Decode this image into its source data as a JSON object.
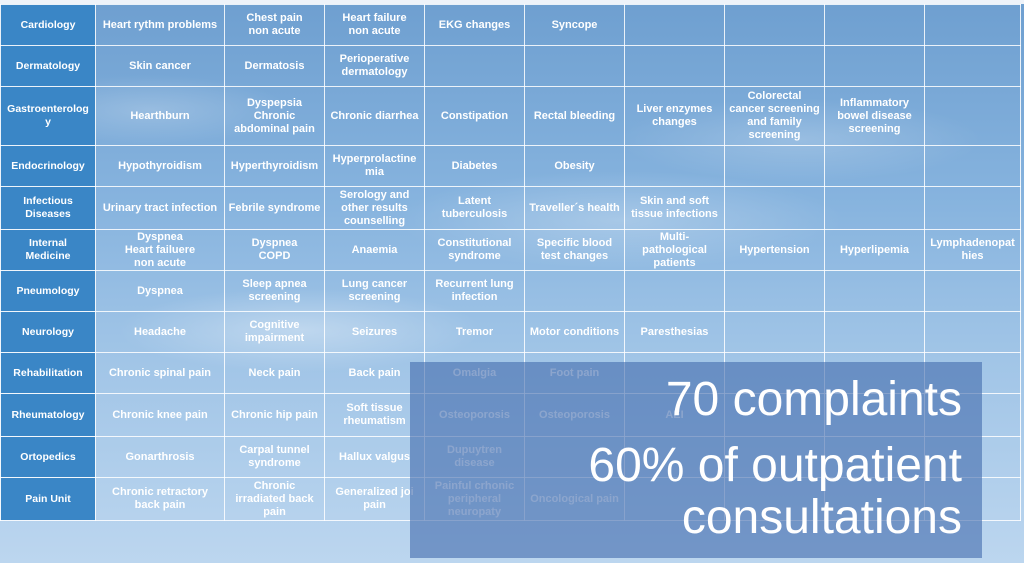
{
  "table": {
    "rows": [
      {
        "category": "Cardiology",
        "cells": [
          "Heart rythm problems",
          "Chest pain\nnon acute",
          "Heart failure\nnon acute",
          "EKG changes",
          "Syncope",
          "",
          "",
          "",
          ""
        ]
      },
      {
        "category": "Dermatology",
        "cells": [
          "Skin cancer",
          "Dermatosis",
          "Perioperative\ndermatology",
          "",
          "",
          "",
          "",
          "",
          ""
        ]
      },
      {
        "category": "Gastroenterolog\ny",
        "cells": [
          "Hearthburn",
          "Dyspepsia\nChronic\nabdominal pain",
          "Chronic diarrhea",
          "Constipation",
          "Rectal bleeding",
          "Liver enzymes\nchanges",
          "Colorectal\ncancer screening\nand family\nscreening",
          "Inflammatory\nbowel disease\nscreening",
          ""
        ]
      },
      {
        "category": "Endocrinology",
        "cells": [
          "Hypothyroidism",
          "Hyperthyroidism",
          "Hyperprolactine\nmia",
          "Diabetes",
          "Obesity",
          "",
          "",
          "",
          ""
        ]
      },
      {
        "category": "Infectious\nDiseases",
        "cells": [
          "Urinary tract infection",
          "Febrile syndrome",
          "Serology and\nother results\ncounselling",
          "Latent\ntuberculosis",
          "Traveller´s health",
          "Skin and soft\ntissue infections",
          "",
          "",
          ""
        ]
      },
      {
        "category": "Internal\nMedicine",
        "cells": [
          "Dyspnea\nHeart failuere\nnon acute",
          "Dyspnea\nCOPD",
          "Anaemia",
          "Constitutional\nsyndrome",
          "Specific blood\ntest changes",
          "Multi-\npathological\npatients",
          "Hypertension",
          "Hyperlipemia",
          "Lymphadenopat\nhies"
        ]
      },
      {
        "category": "Pneumology",
        "cells": [
          "Dyspnea",
          "Sleep apnea\nscreening",
          "Lung cancer\nscreening",
          "Recurrent lung\ninfection",
          "",
          "",
          "",
          "",
          ""
        ]
      },
      {
        "category": "Neurology",
        "cells": [
          "Headache",
          "Cognitive\nimpairment",
          "Seizures",
          "Tremor",
          "Motor conditions",
          "Paresthesias",
          "",
          "",
          ""
        ]
      },
      {
        "category": "Rehabilitation",
        "cells": [
          "Chronic spinal pain",
          "Neck pain",
          "Back pain",
          "Omalgia",
          "Foot pain",
          "",
          "",
          "",
          ""
        ]
      },
      {
        "category": "Rheumatology",
        "cells": [
          "Chronic knee pain",
          "Chronic hip pain",
          "Soft tissue\nrheumatism",
          "Osteoporosis",
          "Osteoporosis",
          "AEI",
          "",
          "",
          ""
        ]
      },
      {
        "category": "Ortopedics",
        "cells": [
          "Gonarthrosis",
          "Carpal tunnel\nsyndrome",
          "Hallux valgus",
          "Dupuytren\ndisease",
          "",
          "",
          "",
          "",
          ""
        ]
      },
      {
        "category": "Pain Unit",
        "cells": [
          "Chronic retractory\nback pain",
          "Chronic\nirradiated back\npain",
          "Generalized joi\npain",
          "Painful crhonic\nperipheral\nneuropaty",
          "Oncological pain",
          "",
          "",
          "",
          ""
        ]
      }
    ]
  },
  "overlay": {
    "line1": "70 complaints",
    "line2": "60% of outpatient\nconsultations"
  },
  "colors": {
    "category_cell": "#3a86c6",
    "overlay_box": "#466eaf",
    "text": "#ffffff"
  }
}
